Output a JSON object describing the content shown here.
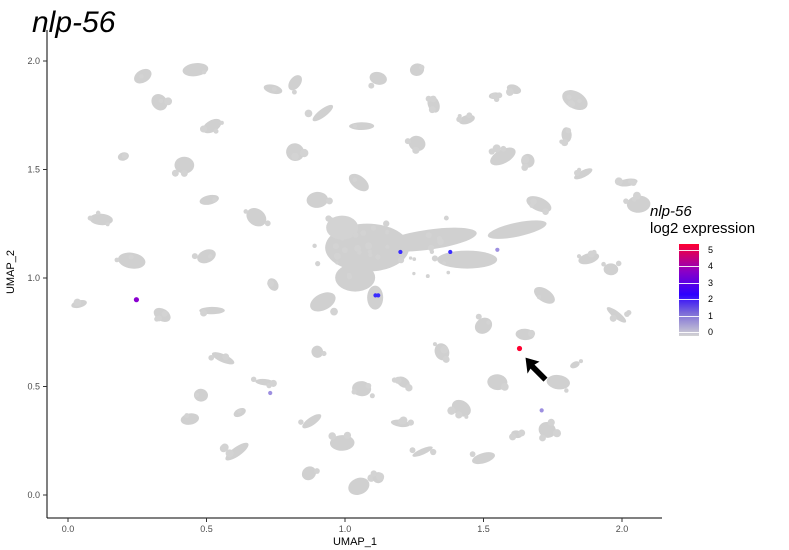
{
  "title": "nlp-56",
  "legend": {
    "gene": "nlp-56",
    "subtitle": "log2 expression",
    "ticks": [
      "5",
      "4",
      "3",
      "2",
      "1",
      "0"
    ],
    "colors": [
      "#d3d3d3",
      "#7b6bd8",
      "#2c00ff",
      "#8a00c8",
      "#ff0030"
    ]
  },
  "chart_data": {
    "type": "scatter",
    "title": "nlp-56",
    "xlabel": "UMAP_1",
    "ylabel": "UMAP_2",
    "xlim": [
      -0.05,
      2.15
    ],
    "ylim": [
      -0.06,
      2.12
    ],
    "x_ticks": [
      "0.0",
      "0.5",
      "1.0",
      "1.5",
      "2.0"
    ],
    "y_ticks": [
      "0.0",
      "0.5",
      "1.0",
      "1.5",
      "2.0"
    ],
    "grid": false,
    "legend_position": "right",
    "color_scale": {
      "name": "nlp-56 log2 expression",
      "min": 0,
      "max": 5
    },
    "background_clusters": [
      {
        "x": 0.27,
        "y": 1.93
      },
      {
        "x": 0.46,
        "y": 1.96
      },
      {
        "x": 0.74,
        "y": 1.87
      },
      {
        "x": 0.82,
        "y": 1.9
      },
      {
        "x": 1.12,
        "y": 1.92
      },
      {
        "x": 1.26,
        "y": 1.96
      },
      {
        "x": 1.32,
        "y": 1.8
      },
      {
        "x": 1.54,
        "y": 1.84
      },
      {
        "x": 1.61,
        "y": 1.87
      },
      {
        "x": 1.83,
        "y": 1.82
      },
      {
        "x": 0.33,
        "y": 1.81
      },
      {
        "x": 0.52,
        "y": 1.7
      },
      {
        "x": 0.92,
        "y": 1.76
      },
      {
        "x": 1.06,
        "y": 1.7
      },
      {
        "x": 1.44,
        "y": 1.73
      },
      {
        "x": 1.8,
        "y": 1.66
      },
      {
        "x": 0.2,
        "y": 1.56
      },
      {
        "x": 0.42,
        "y": 1.52
      },
      {
        "x": 0.82,
        "y": 1.58
      },
      {
        "x": 0.9,
        "y": 1.36
      },
      {
        "x": 1.26,
        "y": 1.62
      },
      {
        "x": 1.57,
        "y": 1.56
      },
      {
        "x": 1.66,
        "y": 1.54
      },
      {
        "x": 1.86,
        "y": 1.48
      },
      {
        "x": 0.12,
        "y": 1.27
      },
      {
        "x": 0.51,
        "y": 1.36
      },
      {
        "x": 0.68,
        "y": 1.28
      },
      {
        "x": 1.05,
        "y": 1.44
      },
      {
        "x": 1.7,
        "y": 1.34
      },
      {
        "x": 2.02,
        "y": 1.44
      },
      {
        "x": 2.06,
        "y": 1.34
      },
      {
        "x": 0.23,
        "y": 1.08
      },
      {
        "x": 0.5,
        "y": 1.1
      },
      {
        "x": 0.74,
        "y": 0.97
      },
      {
        "x": 0.92,
        "y": 0.89
      },
      {
        "x": 1.72,
        "y": 0.92
      },
      {
        "x": 1.88,
        "y": 1.09
      },
      {
        "x": 1.96,
        "y": 1.04
      },
      {
        "x": 0.04,
        "y": 0.88
      },
      {
        "x": 0.34,
        "y": 0.83
      },
      {
        "x": 0.52,
        "y": 0.85
      },
      {
        "x": 1.5,
        "y": 0.78
      },
      {
        "x": 1.65,
        "y": 0.74
      },
      {
        "x": 1.98,
        "y": 0.83
      },
      {
        "x": 0.56,
        "y": 0.63
      },
      {
        "x": 0.9,
        "y": 0.66
      },
      {
        "x": 1.35,
        "y": 0.66
      },
      {
        "x": 1.83,
        "y": 0.6
      },
      {
        "x": 0.48,
        "y": 0.46
      },
      {
        "x": 0.71,
        "y": 0.52
      },
      {
        "x": 1.06,
        "y": 0.49
      },
      {
        "x": 1.21,
        "y": 0.52
      },
      {
        "x": 1.55,
        "y": 0.52
      },
      {
        "x": 1.77,
        "y": 0.52
      },
      {
        "x": 0.44,
        "y": 0.35
      },
      {
        "x": 0.62,
        "y": 0.38
      },
      {
        "x": 0.88,
        "y": 0.34
      },
      {
        "x": 1.2,
        "y": 0.33
      },
      {
        "x": 1.62,
        "y": 0.28
      },
      {
        "x": 1.42,
        "y": 0.4
      },
      {
        "x": 0.61,
        "y": 0.2
      },
      {
        "x": 0.99,
        "y": 0.24
      },
      {
        "x": 1.28,
        "y": 0.2
      },
      {
        "x": 1.5,
        "y": 0.17
      },
      {
        "x": 0.87,
        "y": 0.1
      },
      {
        "x": 1.05,
        "y": 0.04
      },
      {
        "x": 1.12,
        "y": 0.08
      },
      {
        "x": 1.73,
        "y": 0.3
      }
    ],
    "central_cluster": {
      "x": 1.08,
      "y": 1.14
    },
    "expressing_points": [
      {
        "x": 1.63,
        "y": 0.675,
        "value": 4
      },
      {
        "x": 0.247,
        "y": 0.9,
        "value": 3
      },
      {
        "x": 1.11,
        "y": 0.92,
        "value": 2
      },
      {
        "x": 1.12,
        "y": 0.92,
        "value": 2
      },
      {
        "x": 1.2,
        "y": 1.12,
        "value": 2
      },
      {
        "x": 1.38,
        "y": 1.12,
        "value": 2
      },
      {
        "x": 1.55,
        "y": 1.13,
        "value": 1
      },
      {
        "x": 0.73,
        "y": 0.47,
        "value": 1
      },
      {
        "x": 1.71,
        "y": 0.39,
        "value": 1
      }
    ],
    "annotations": [
      {
        "type": "arrow",
        "x": 1.63,
        "y": 0.67
      }
    ]
  }
}
